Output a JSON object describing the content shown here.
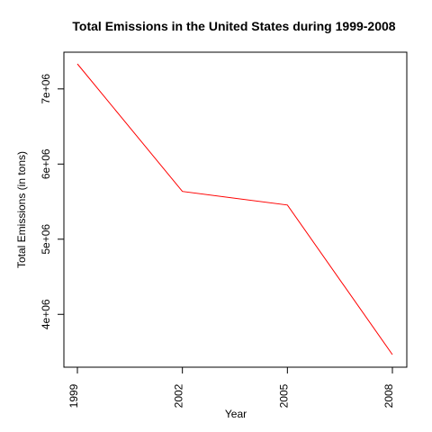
{
  "chart_data": {
    "type": "line",
    "title": "Total Emissions in the United States during 1999-2008",
    "xlabel": "Year",
    "ylabel": "Total Emissions (in tons)",
    "x": [
      1999,
      2002,
      2005,
      2008
    ],
    "x_tick_labels": [
      "1999",
      "2002",
      "2005",
      "2008"
    ],
    "y_ticks": [
      4000000,
      5000000,
      6000000,
      7000000
    ],
    "y_tick_labels": [
      "4e+06",
      "5e+06",
      "6e+06",
      "7e+06"
    ],
    "xlim": [
      1999,
      2008
    ],
    "ylim": [
      3464206,
      7332967
    ],
    "grid": false,
    "series": [
      {
        "values": [
          7332967,
          5635780,
          5454703,
          3464206
        ],
        "color": "#FF0000"
      }
    ]
  }
}
